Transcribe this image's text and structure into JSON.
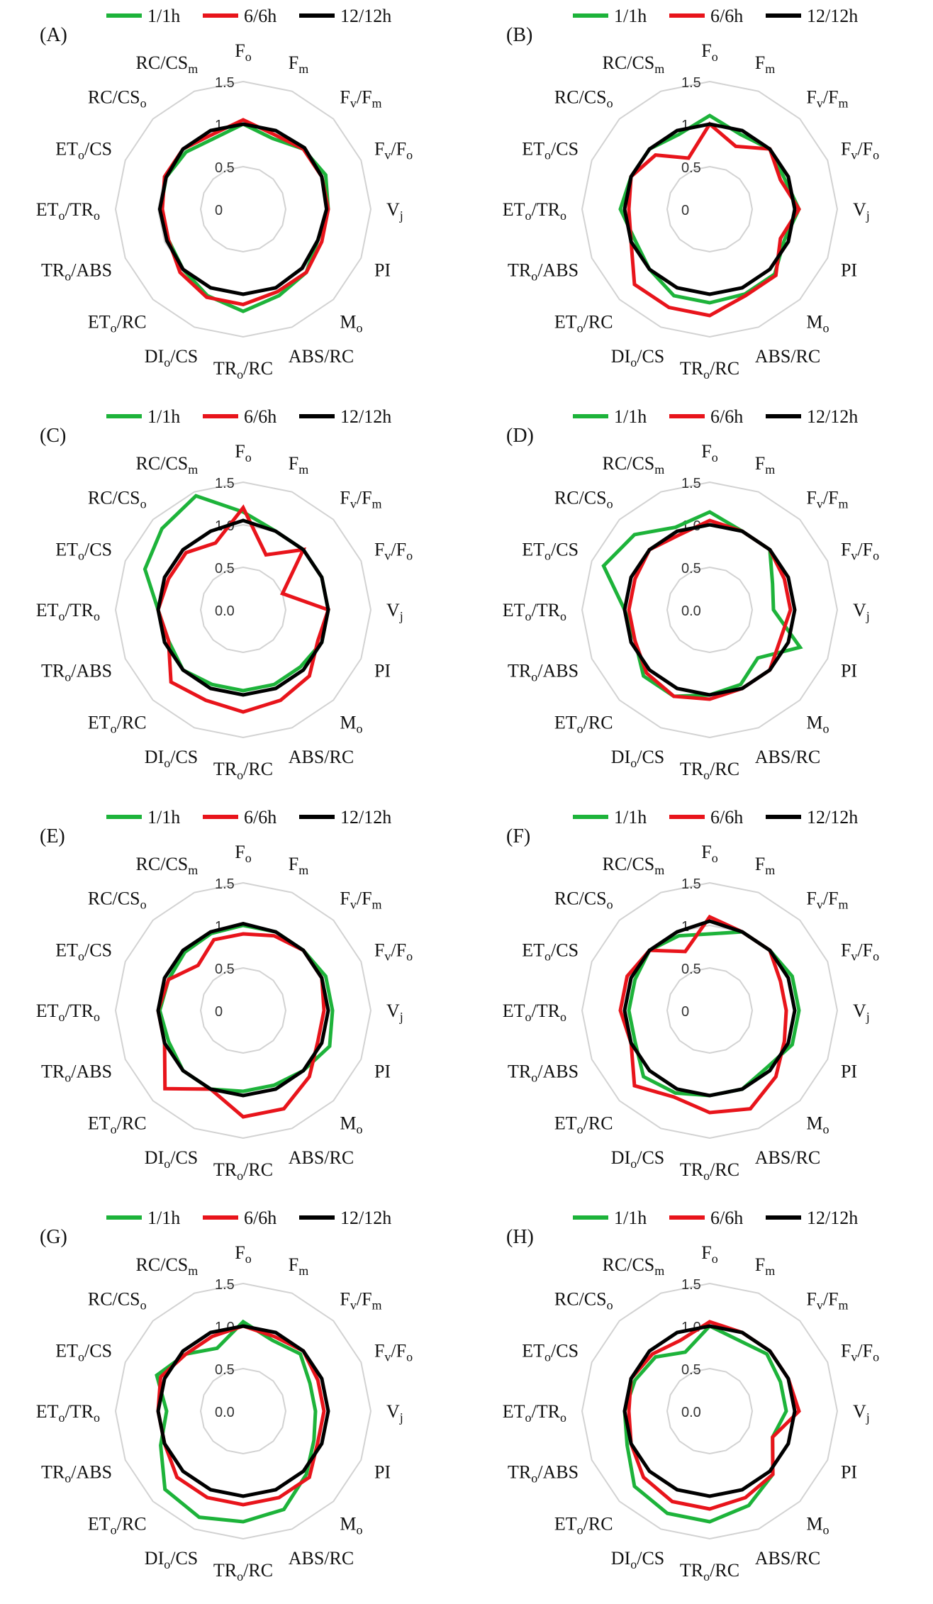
{
  "figure": {
    "panel_letters": [
      "(A)",
      "(B)",
      "(C)",
      "(D)",
      "(E)",
      "(F)",
      "(G)",
      "(H)"
    ]
  },
  "chart_data": [
    {
      "type": "radar",
      "panel": "(A)",
      "radial_tick_labels": [
        "0",
        "0.5",
        "1",
        "1.5"
      ],
      "rmax": 1.5,
      "grid": true,
      "legend_position": "top",
      "categories": [
        "Fo",
        "Fm",
        "Fv/Fm",
        "Fv/Fo",
        "Vj",
        "PI",
        "Mo",
        "ABS/RC",
        "TRo/RC",
        "DIo/CS",
        "ETo/RC",
        "TRo/ABS",
        "ETo/TRo",
        "ETo/CS",
        "RC/CSo",
        "RC/CSm"
      ],
      "series": [
        {
          "name": "1/1h",
          "color": "#1db33a",
          "values": [
            1.0,
            0.9,
            1.0,
            1.05,
            1.0,
            0.95,
            1.05,
            1.1,
            1.2,
            1.1,
            1.0,
            0.95,
            0.97,
            0.98,
            0.95,
            0.9
          ]
        },
        {
          "name": "6/6h",
          "color": "#e8141b",
          "values": [
            1.05,
            0.95,
            1.0,
            1.0,
            1.0,
            1.0,
            1.05,
            1.05,
            1.12,
            1.12,
            1.05,
            0.95,
            0.95,
            1.0,
            1.0,
            0.95
          ]
        },
        {
          "name": "12/12h",
          "color": "#000000",
          "values": [
            1.0,
            1.0,
            1.02,
            1.0,
            0.98,
            0.95,
            0.98,
            1.0,
            1.0,
            1.0,
            1.0,
            0.97,
            0.98,
            0.98,
            1.0,
            1.0
          ]
        }
      ]
    },
    {
      "type": "radar",
      "panel": "(B)",
      "radial_tick_labels": [
        "0",
        "0.5",
        "1",
        "1.5"
      ],
      "rmax": 1.5,
      "grid": true,
      "legend_position": "top",
      "categories": [
        "Fo",
        "Fm",
        "Fv/Fm",
        "Fv/Fo",
        "Vj",
        "PI",
        "Mo",
        "ABS/RC",
        "TRo/RC",
        "DIo/CS",
        "ETo/RC",
        "TRo/ABS",
        "ETo/TRo",
        "ETo/CS",
        "RC/CSo",
        "RC/CSm"
      ],
      "series": [
        {
          "name": "1/1h",
          "color": "#1db33a",
          "values": [
            1.1,
            0.95,
            1.0,
            0.95,
            1.05,
            0.95,
            1.08,
            1.08,
            1.1,
            1.1,
            1.0,
            0.95,
            1.05,
            1.0,
            1.0,
            0.95
          ]
        },
        {
          "name": "6/6h",
          "color": "#e8141b",
          "values": [
            1.0,
            0.8,
            1.0,
            0.9,
            1.05,
            0.9,
            1.1,
            1.1,
            1.25,
            1.25,
            1.25,
            1.0,
            0.95,
            1.0,
            0.9,
            0.65
          ]
        },
        {
          "name": "12/12h",
          "color": "#000000",
          "values": [
            1.0,
            1.0,
            1.0,
            1.0,
            1.0,
            1.0,
            1.0,
            1.0,
            1.0,
            1.0,
            1.0,
            1.0,
            1.0,
            1.0,
            1.0,
            1.0
          ]
        }
      ]
    },
    {
      "type": "radar",
      "panel": "(C)",
      "radial_tick_labels": [
        "0.0",
        "0.5",
        "1.0",
        "1.5"
      ],
      "rmax": 1.5,
      "grid": true,
      "legend_position": "top",
      "categories": [
        "Fo",
        "Fm",
        "Fv/Fm",
        "Fv/Fo",
        "Vj",
        "PI",
        "Mo",
        "ABS/RC",
        "TRo/RC",
        "DIo/CS",
        "ETo/RC",
        "TRo/ABS",
        "ETo/TRo",
        "ETo/CS",
        "RC/CSo",
        "RC/CSm"
      ],
      "series": [
        {
          "name": "1/1h",
          "color": "#1db33a",
          "values": [
            1.15,
            1.0,
            1.0,
            1.0,
            1.0,
            1.0,
            0.95,
            0.95,
            0.95,
            0.95,
            1.0,
            0.95,
            1.0,
            1.25,
            1.35,
            1.45
          ]
        },
        {
          "name": "6/6h",
          "color": "#e8141b",
          "values": [
            1.2,
            0.7,
            1.0,
            0.5,
            1.0,
            0.95,
            1.1,
            1.15,
            1.2,
            1.15,
            1.2,
            0.95,
            1.0,
            0.95,
            0.95,
            0.85
          ]
        },
        {
          "name": "12/12h",
          "color": "#000000",
          "values": [
            1.05,
            1.0,
            1.0,
            1.0,
            1.0,
            1.0,
            1.0,
            1.0,
            1.0,
            1.0,
            1.0,
            1.0,
            1.0,
            1.0,
            1.0,
            1.0
          ]
        }
      ]
    },
    {
      "type": "radar",
      "panel": "(D)",
      "radial_tick_labels": [
        "0.0",
        "0.5",
        "1.0",
        "1.5"
      ],
      "rmax": 1.5,
      "grid": true,
      "legend_position": "top",
      "categories": [
        "Fo",
        "Fm",
        "Fv/Fm",
        "Fv/Fo",
        "Vj",
        "PI",
        "Mo",
        "ABS/RC",
        "TRo/RC",
        "DIo/CS",
        "ETo/RC",
        "TRo/ABS",
        "ETo/TRo",
        "ETo/CS",
        "RC/CSo",
        "RC/CSm"
      ],
      "series": [
        {
          "name": "1/1h",
          "color": "#1db33a",
          "values": [
            1.15,
            1.0,
            1.0,
            0.8,
            0.75,
            1.15,
            0.8,
            0.95,
            1.0,
            1.1,
            1.1,
            0.95,
            1.0,
            1.35,
            1.25,
            1.05
          ]
        },
        {
          "name": "6/6h",
          "color": "#e8141b",
          "values": [
            1.05,
            1.0,
            1.0,
            0.95,
            0.95,
            0.9,
            1.0,
            1.0,
            1.05,
            1.1,
            1.05,
            0.95,
            0.95,
            0.95,
            1.0,
            0.95
          ]
        },
        {
          "name": "12/12h",
          "color": "#000000",
          "values": [
            1.0,
            1.0,
            1.0,
            1.0,
            1.0,
            1.0,
            1.0,
            1.0,
            1.0,
            1.0,
            1.0,
            1.0,
            1.0,
            1.0,
            1.0,
            1.0
          ]
        }
      ]
    },
    {
      "type": "radar",
      "panel": "(E)",
      "radial_tick_labels": [
        "0",
        "0.5",
        "1",
        "1.5"
      ],
      "rmax": 1.5,
      "grid": true,
      "legend_position": "top",
      "categories": [
        "Fo",
        "Fm",
        "Fv/Fm",
        "Fv/Fo",
        "Vj",
        "PI",
        "Mo",
        "ABS/RC",
        "TRo/RC",
        "DIo/CS",
        "ETo/RC",
        "TRo/ABS",
        "ETo/TRo",
        "ETo/CS",
        "RC/CSo",
        "RC/CSm"
      ],
      "series": [
        {
          "name": "1/1h",
          "color": "#1db33a",
          "values": [
            1.0,
            1.0,
            1.0,
            1.05,
            1.05,
            1.1,
            1.0,
            0.95,
            0.95,
            1.0,
            1.0,
            0.95,
            0.98,
            0.95,
            0.97,
            0.98
          ]
        },
        {
          "name": "6/6h",
          "color": "#e8141b",
          "values": [
            0.9,
            0.95,
            1.0,
            1.0,
            0.95,
            0.95,
            1.1,
            1.25,
            1.25,
            1.0,
            1.3,
            1.0,
            1.0,
            0.95,
            0.75,
            0.9
          ]
        },
        {
          "name": "12/12h",
          "color": "#000000",
          "values": [
            1.02,
            1.0,
            1.0,
            1.0,
            1.0,
            1.0,
            1.0,
            1.0,
            1.0,
            1.0,
            1.0,
            1.0,
            1.0,
            1.0,
            1.0,
            1.0
          ]
        }
      ]
    },
    {
      "type": "radar",
      "panel": "(F)",
      "radial_tick_labels": [
        "0",
        "0.5",
        "1",
        "1.5"
      ],
      "rmax": 1.5,
      "grid": true,
      "legend_position": "top",
      "categories": [
        "Fo",
        "Fm",
        "Fv/Fm",
        "Fv/Fo",
        "Vj",
        "PI",
        "Mo",
        "ABS/RC",
        "TRo/RC",
        "DIo/CS",
        "ETo/RC",
        "TRo/ABS",
        "ETo/TRo",
        "ETo/CS",
        "RC/CSo",
        "RC/CSm"
      ],
      "series": [
        {
          "name": "1/1h",
          "color": "#1db33a",
          "values": [
            0.9,
            1.0,
            1.0,
            1.05,
            1.05,
            1.05,
            0.95,
            1.0,
            1.0,
            1.05,
            1.1,
            0.95,
            0.95,
            0.95,
            1.0,
            0.95
          ]
        },
        {
          "name": "6/6h",
          "color": "#e8141b",
          "values": [
            1.1,
            1.0,
            1.0,
            0.9,
            0.9,
            0.95,
            1.1,
            1.25,
            1.2,
            1.1,
            1.25,
            1.0,
            1.05,
            1.05,
            1.0,
            0.75
          ]
        },
        {
          "name": "12/12h",
          "color": "#000000",
          "values": [
            1.05,
            1.0,
            1.0,
            1.0,
            1.0,
            1.0,
            1.0,
            1.0,
            1.0,
            1.0,
            1.0,
            1.0,
            1.0,
            1.0,
            1.0,
            1.0
          ]
        }
      ]
    },
    {
      "type": "radar",
      "panel": "(G)",
      "radial_tick_labels": [
        "0.0",
        "0.5",
        "1.0",
        "1.5"
      ],
      "rmax": 1.5,
      "grid": true,
      "legend_position": "top",
      "categories": [
        "Fo",
        "Fm",
        "Fv/Fm",
        "Fv/Fo",
        "Vj",
        "PI",
        "Mo",
        "ABS/RC",
        "TRo/RC",
        "DIo/CS",
        "ETo/RC",
        "TRo/ABS",
        "ETo/TRo",
        "ETo/CS",
        "RC/CSo",
        "RC/CSm"
      ],
      "series": [
        {
          "name": "1/1h",
          "color": "#1db33a",
          "values": [
            1.05,
            0.9,
            0.95,
            0.85,
            0.85,
            0.9,
            1.05,
            1.25,
            1.3,
            1.35,
            1.3,
            1.05,
            0.9,
            1.1,
            0.95,
            0.8
          ]
        },
        {
          "name": "6/6h",
          "color": "#e8141b",
          "values": [
            1.0,
            0.95,
            1.0,
            0.95,
            0.95,
            0.95,
            1.1,
            1.1,
            1.1,
            1.1,
            1.1,
            1.0,
            1.0,
            1.05,
            0.95,
            0.95
          ]
        },
        {
          "name": "12/12h",
          "color": "#000000",
          "values": [
            1.0,
            1.0,
            1.0,
            1.0,
            1.0,
            1.0,
            1.0,
            1.0,
            1.0,
            1.0,
            1.0,
            1.0,
            1.0,
            1.0,
            1.0,
            1.0
          ]
        }
      ]
    },
    {
      "type": "radar",
      "panel": "(H)",
      "radial_tick_labels": [
        "0.0",
        "0.5",
        "1.0",
        "1.5"
      ],
      "rmax": 1.5,
      "grid": true,
      "legend_position": "top",
      "categories": [
        "Fo",
        "Fm",
        "Fv/Fm",
        "Fv/Fo",
        "Vj",
        "PI",
        "Mo",
        "ABS/RC",
        "TRo/RC",
        "DIo/CS",
        "ETo/RC",
        "TRo/ABS",
        "ETo/TRo",
        "ETo/CS",
        "RC/CSo",
        "RC/CSm"
      ],
      "series": [
        {
          "name": "1/1h",
          "color": "#1db33a",
          "values": [
            1.0,
            0.9,
            0.95,
            0.9,
            0.9,
            0.8,
            1.05,
            1.2,
            1.3,
            1.3,
            1.25,
            1.05,
            1.0,
            0.95,
            0.9,
            0.75
          ]
        },
        {
          "name": "6/6h",
          "color": "#e8141b",
          "values": [
            1.05,
            1.0,
            1.0,
            1.0,
            1.05,
            0.8,
            1.05,
            1.1,
            1.15,
            1.15,
            1.1,
            1.0,
            0.95,
            1.0,
            0.95,
            0.9
          ]
        },
        {
          "name": "12/12h",
          "color": "#000000",
          "values": [
            1.0,
            1.0,
            1.0,
            1.0,
            1.0,
            1.0,
            1.0,
            1.0,
            1.0,
            1.0,
            1.0,
            1.0,
            1.0,
            1.0,
            1.0,
            1.0
          ]
        }
      ]
    }
  ]
}
